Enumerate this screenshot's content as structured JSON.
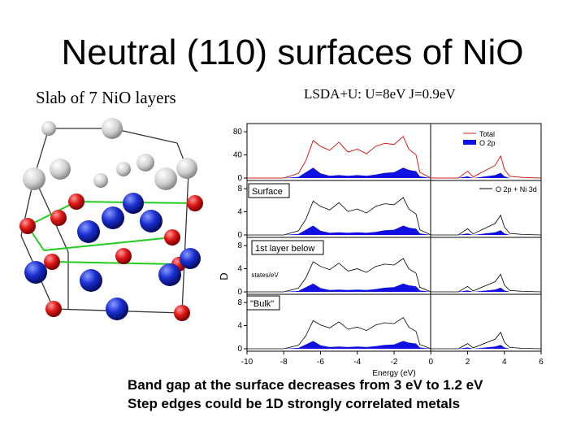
{
  "slide": {
    "title": "Neutral (110) surfaces of NiO",
    "left_subtitle": "Slab of 7 NiO layers",
    "right_subtitle": "LSDA+U:  U=8eV  J=0.9eV",
    "bottom_lines": [
      "Band gap at the surface decreases from 3 eV to 1.2 eV",
      "Step edges could be 1D strongly correlated metals"
    ]
  },
  "colors": {
    "total": "#d42020",
    "o2p": "#1010e0",
    "ni_blue": "#1a2fd0",
    "oxygen_red": "#d81818",
    "surface_grey": "#d8d8d8",
    "bond_green": "#22cc22"
  },
  "chart_data": {
    "type": "area",
    "xlabel": "Energy (eV)",
    "ylabel": "D",
    "ylabel_overlay": "states/eV",
    "xlim": [
      -10,
      6
    ],
    "x_ticks": [
      "-10",
      "-8",
      "-6",
      "-4",
      "-2",
      "0",
      "2",
      "4",
      "6"
    ],
    "panels": [
      {
        "label": "",
        "ylim": [
          0,
          90
        ],
        "y_ticks": [
          "80",
          "40",
          "0"
        ]
      },
      {
        "label": "Surface",
        "ylim": [
          0,
          9
        ],
        "y_ticks": [
          "8",
          "4",
          "0"
        ]
      },
      {
        "label": "1st layer below",
        "ylim": [
          0,
          9
        ],
        "y_ticks": [
          "8",
          "4",
          "0"
        ]
      },
      {
        "label": "\"Bulk\"",
        "ylim": [
          0,
          9
        ],
        "y_ticks": [
          "8",
          "4",
          "0"
        ]
      }
    ],
    "legend_top": [
      "Total",
      "O 2p"
    ],
    "legend_second": "O 2p + Ni 3d",
    "series": [
      {
        "name": "Total",
        "x": [
          -10,
          -8,
          -7.2,
          -6.8,
          -6.4,
          -6,
          -5.5,
          -5,
          -4.5,
          -4,
          -3.5,
          -3,
          -2.5,
          -2,
          -1.5,
          -1.2,
          -0.8,
          -0.6,
          0,
          1.5,
          2,
          2.3,
          3.5,
          3.8,
          4,
          4.3,
          5,
          6
        ],
        "y": [
          0,
          0,
          8,
          30,
          65,
          55,
          48,
          62,
          45,
          50,
          42,
          55,
          60,
          58,
          72,
          50,
          40,
          10,
          0,
          0,
          12,
          2,
          22,
          38,
          15,
          3,
          1,
          0
        ]
      },
      {
        "name": "O 2p",
        "x": [
          -10,
          -8,
          -7.2,
          -6.8,
          -6.4,
          -6,
          -5.5,
          -5,
          -4.5,
          -4,
          -3.5,
          -3,
          -2.5,
          -2,
          -1.5,
          -1.2,
          -0.8,
          -0.6,
          0,
          1.5,
          2,
          2.3,
          3.5,
          3.8,
          4,
          4.3,
          5,
          6
        ],
        "y": [
          0,
          0,
          2,
          10,
          18,
          8,
          4,
          5,
          4,
          5,
          4,
          6,
          9,
          10,
          18,
          14,
          12,
          3,
          0,
          0,
          3,
          0,
          5,
          9,
          3,
          0,
          0,
          0
        ]
      }
    ]
  }
}
